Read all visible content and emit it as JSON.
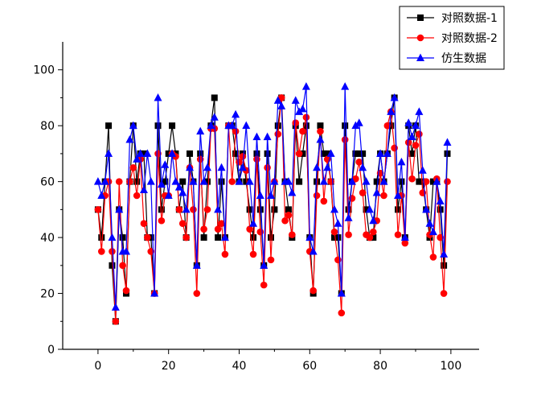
{
  "chart_data": {
    "type": "line",
    "title": "",
    "xlabel": "",
    "ylabel": "",
    "xlim": [
      -10,
      108
    ],
    "ylim": [
      0,
      110
    ],
    "xticks": [
      0,
      20,
      40,
      60,
      80,
      100
    ],
    "yticks": [
      0,
      20,
      40,
      60,
      80,
      100
    ],
    "grid": false,
    "legend_position": "top-right",
    "x": [
      0,
      1,
      2,
      3,
      4,
      5,
      6,
      7,
      8,
      9,
      10,
      11,
      12,
      13,
      14,
      15,
      16,
      17,
      18,
      19,
      20,
      21,
      22,
      23,
      24,
      25,
      26,
      27,
      28,
      29,
      30,
      31,
      32,
      33,
      34,
      35,
      36,
      37,
      38,
      39,
      40,
      41,
      42,
      43,
      44,
      45,
      46,
      47,
      48,
      49,
      50,
      51,
      52,
      53,
      54,
      55,
      56,
      57,
      58,
      59,
      60,
      61,
      62,
      63,
      64,
      65,
      66,
      67,
      68,
      69,
      70,
      71,
      72,
      73,
      74,
      75,
      76,
      77,
      78,
      79,
      80,
      81,
      82,
      83,
      84,
      85,
      86,
      87,
      88,
      89,
      90,
      91,
      92,
      93,
      94,
      95,
      96,
      97,
      98,
      99
    ],
    "series": [
      {
        "name": "对照数据-1",
        "color": "#000000",
        "marker": "square",
        "values": [
          50,
          40,
          60,
          80,
          30,
          10,
          50,
          40,
          20,
          60,
          80,
          60,
          70,
          70,
          40,
          40,
          20,
          80,
          50,
          60,
          70,
          80,
          70,
          50,
          60,
          40,
          70,
          60,
          30,
          70,
          40,
          60,
          80,
          90,
          40,
          60,
          40,
          80,
          80,
          70,
          60,
          70,
          60,
          50,
          40,
          70,
          50,
          30,
          70,
          40,
          50,
          80,
          90,
          60,
          50,
          40,
          80,
          60,
          70,
          80,
          40,
          20,
          60,
          80,
          70,
          70,
          60,
          40,
          40,
          20,
          80,
          50,
          60,
          70,
          70,
          70,
          50,
          40,
          40,
          60,
          70,
          60,
          70,
          80,
          90,
          50,
          60,
          40,
          80,
          70,
          80,
          60,
          60,
          50,
          40,
          60,
          60,
          50,
          30,
          70
        ]
      },
      {
        "name": "对照数据-2",
        "color": "#ff0000",
        "marker": "circle",
        "values": [
          50,
          35,
          55,
          60,
          35,
          10,
          60,
          30,
          21,
          60,
          65,
          55,
          68,
          45,
          40,
          35,
          20,
          70,
          46,
          55,
          55,
          70,
          69,
          50,
          45,
          40,
          65,
          50,
          20,
          68,
          43,
          50,
          79,
          79,
          43,
          45,
          34,
          80,
          60,
          78,
          67,
          69,
          64,
          43,
          34,
          68,
          42,
          23,
          65,
          32,
          60,
          77,
          90,
          46,
          48,
          41,
          81,
          70,
          78,
          83,
          35,
          21,
          55,
          78,
          53,
          68,
          60,
          42,
          32,
          13,
          75,
          41,
          54,
          61,
          67,
          56,
          41,
          40,
          42,
          46,
          63,
          55,
          80,
          85,
          72,
          41,
          55,
          38,
          74,
          61,
          73,
          77,
          56,
          60,
          41,
          33,
          61,
          40,
          20,
          60
        ]
      },
      {
        "name": "仿生数据",
        "color": "#0000ff",
        "marker": "triangle",
        "values": [
          60,
          55,
          60,
          70,
          40,
          15,
          50,
          35,
          35,
          75,
          80,
          68,
          70,
          57,
          70,
          60,
          20,
          90,
          59,
          66,
          55,
          70,
          60,
          58,
          56,
          50,
          65,
          60,
          30,
          78,
          60,
          65,
          80,
          83,
          50,
          65,
          40,
          80,
          80,
          84,
          60,
          65,
          80,
          60,
          45,
          76,
          55,
          30,
          76,
          55,
          60,
          89,
          87,
          60,
          60,
          56,
          89,
          85,
          86,
          94,
          40,
          35,
          65,
          75,
          60,
          65,
          70,
          50,
          45,
          20,
          94,
          47,
          60,
          80,
          81,
          65,
          60,
          50,
          46,
          56,
          70,
          60,
          70,
          85,
          90,
          55,
          67,
          40,
          81,
          76,
          80,
          85,
          64,
          50,
          45,
          42,
          60,
          53,
          34,
          74
        ]
      }
    ]
  }
}
